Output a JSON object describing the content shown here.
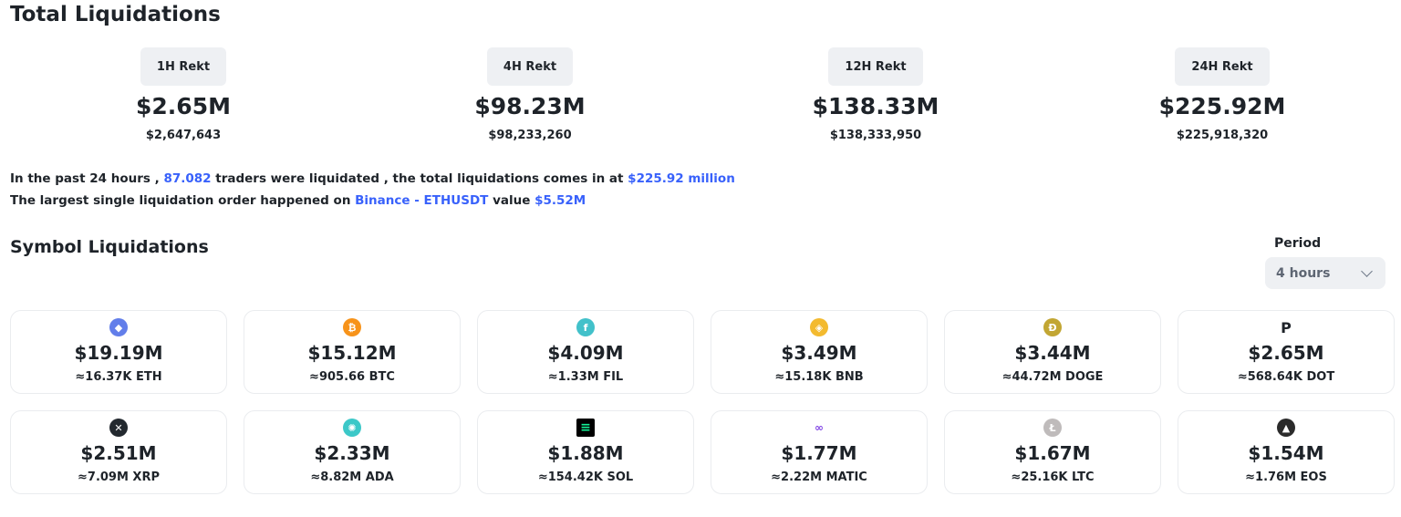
{
  "total": {
    "title": "Total Liquidations",
    "periods": [
      {
        "label": "1H Rekt",
        "value": "$2.65M",
        "exact": "$2,647,643"
      },
      {
        "label": "4H Rekt",
        "value": "$98.23M",
        "exact": "$98,233,260"
      },
      {
        "label": "12H Rekt",
        "value": "$138.33M",
        "exact": "$138,333,950"
      },
      {
        "label": "24H Rekt",
        "value": "$225.92M",
        "exact": "$225,918,320"
      }
    ]
  },
  "summary": {
    "line1_a": "In the past 24 hours ,",
    "traders": "87.082",
    "line1_b": "traders were liquidated , the total liquidations comes in at",
    "total": "$225.92 million",
    "line2_a": "The largest single liquidation order happened on",
    "exchange_pair": "Binance - ETHUSDT",
    "line2_b": "value",
    "largest": "$5.52M"
  },
  "symbols": {
    "title": "Symbol Liquidations",
    "period_label": "Period",
    "period_value": "4 hours",
    "cards": [
      {
        "value": "$19.19M",
        "amount": "≈16.37K ETH",
        "icon": "eth-icon",
        "color": "#627eea",
        "glyph": "◆"
      },
      {
        "value": "$15.12M",
        "amount": "≈905.66 BTC",
        "icon": "btc-icon",
        "color": "#f7931a",
        "glyph": "₿"
      },
      {
        "value": "$4.09M",
        "amount": "≈1.33M FIL",
        "icon": "fil-icon",
        "color": "#42c1ca",
        "glyph": "f"
      },
      {
        "value": "$3.49M",
        "amount": "≈15.18K BNB",
        "icon": "bnb-icon",
        "color": "#f3ba2f",
        "glyph": "◈"
      },
      {
        "value": "$3.44M",
        "amount": "≈44.72M DOGE",
        "icon": "doge-icon",
        "color": "#c2a633",
        "glyph": "Ð"
      },
      {
        "value": "$2.65M",
        "amount": "≈568.64K DOT",
        "icon": "dot-icon",
        "color": "#ffffff",
        "glyph": "P"
      },
      {
        "value": "$2.51M",
        "amount": "≈7.09M XRP",
        "icon": "xrp-icon",
        "color": "#23292f",
        "glyph": "✕"
      },
      {
        "value": "$2.33M",
        "amount": "≈8.82M ADA",
        "icon": "ada-icon",
        "color": "#3cc8c8",
        "glyph": "✺"
      },
      {
        "value": "$1.88M",
        "amount": "≈154.42K SOL",
        "icon": "sol-icon",
        "color": "#000000",
        "glyph": "≡"
      },
      {
        "value": "$1.77M",
        "amount": "≈2.22M MATIC",
        "icon": "matic-icon",
        "color": "#ffffff",
        "glyph": "∞"
      },
      {
        "value": "$1.67M",
        "amount": "≈25.16K LTC",
        "icon": "ltc-icon",
        "color": "#bfbbbb",
        "glyph": "Ł"
      },
      {
        "value": "$1.54M",
        "amount": "≈1.76M EOS",
        "icon": "eos-icon",
        "color": "#2b2b2b",
        "glyph": "▲"
      }
    ]
  }
}
